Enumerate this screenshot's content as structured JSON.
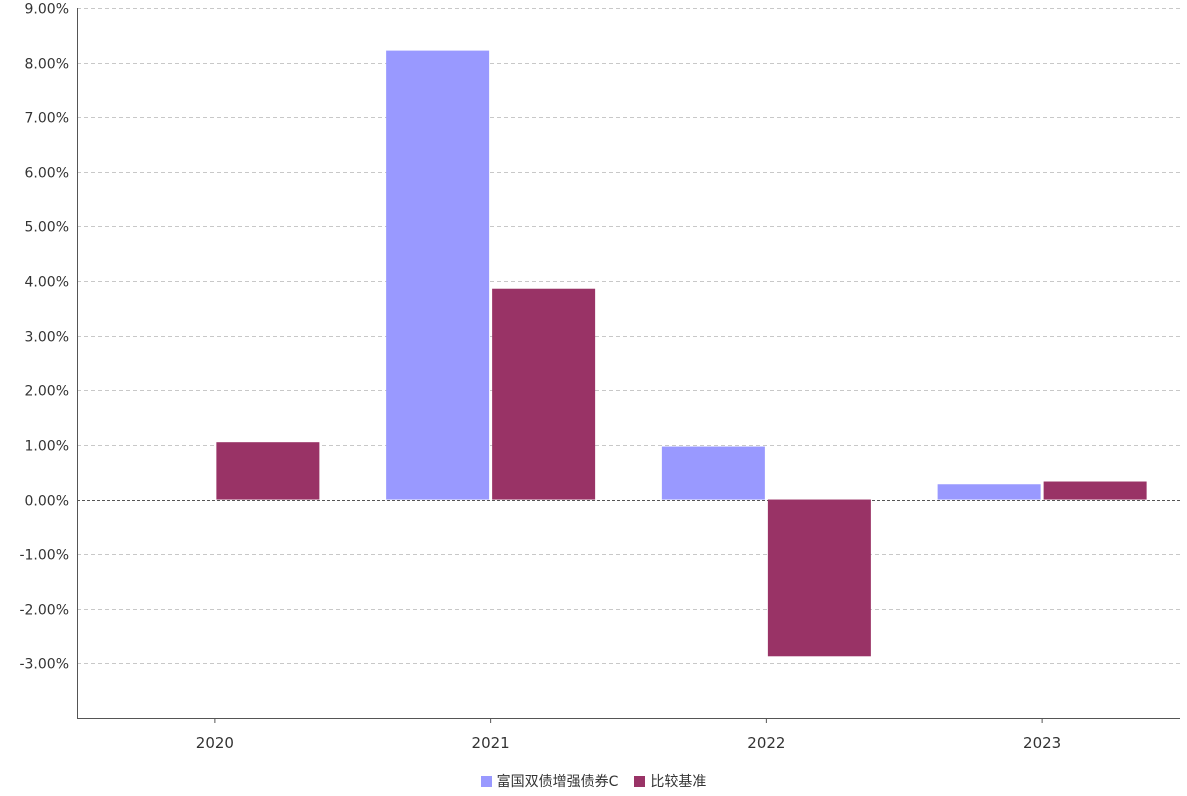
{
  "chart_data": {
    "type": "bar",
    "categories": [
      "2020",
      "2021",
      "2022",
      "2023"
    ],
    "series": [
      {
        "name": "富国双债增强债券C",
        "color": "#9999ff",
        "values": [
          null,
          8.22,
          0.97,
          0.28
        ]
      },
      {
        "name": "比较基准",
        "color": "#993366",
        "values": [
          1.05,
          3.86,
          -2.87,
          0.33
        ]
      }
    ],
    "ylim": [
      -4.0,
      9.0
    ],
    "yticks": [
      "9.00%",
      "8.00%",
      "7.00%",
      "6.00%",
      "5.00%",
      "4.00%",
      "3.00%",
      "2.00%",
      "1.00%",
      "0.00%",
      "-1.00%",
      "-2.00%",
      "-3.00%"
    ],
    "ytick_values": [
      9,
      8,
      7,
      6,
      5,
      4,
      3,
      2,
      1,
      0,
      -1,
      -2,
      -3
    ],
    "grid": true,
    "legend_position": "bottom-center"
  }
}
